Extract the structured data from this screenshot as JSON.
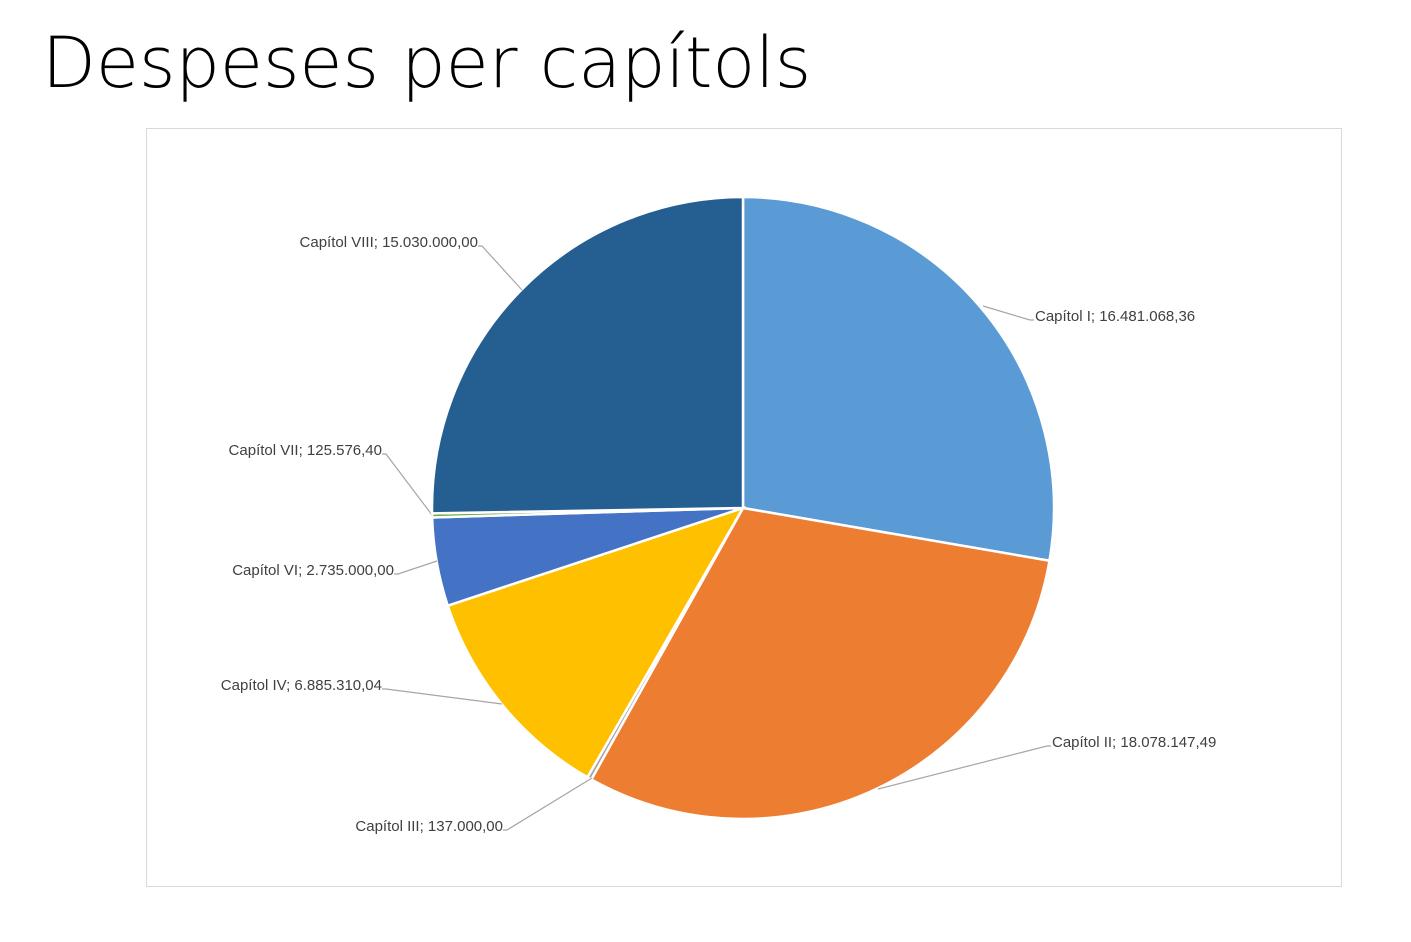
{
  "title": "Despeses per capítols",
  "chart_data": {
    "type": "pie",
    "title": "Despeses per capítols",
    "start_angle": "top, clockwise",
    "slices": [
      {
        "name": "Capítol I",
        "value": 16481068.36,
        "label": "Capítol I; 16.481.068,36",
        "color": "#5B9BD5"
      },
      {
        "name": "Capítol II",
        "value": 18078147.49,
        "label": "Capítol II; 18.078.147,49",
        "color": "#ED7D31"
      },
      {
        "name": "Capítol III",
        "value": 137000.0,
        "label": "Capítol III; 137.000,00",
        "color": "#A5A5A5"
      },
      {
        "name": "Capítol IV",
        "value": 6885310.04,
        "label": "Capítol IV; 6.885.310,04",
        "color": "#FFC000"
      },
      {
        "name": "Capítol VI",
        "value": 2735000.0,
        "label": "Capítol VI; 2.735.000,00",
        "color": "#4472C4"
      },
      {
        "name": "Capítol VII",
        "value": 125576.4,
        "label": "Capítol VII; 125.576,40",
        "color": "#70AD47"
      },
      {
        "name": "Capítol VIII",
        "value": 15030000.0,
        "label": "Capítol VIII; 15.030.000,00",
        "color": "#255E91"
      }
    ]
  }
}
